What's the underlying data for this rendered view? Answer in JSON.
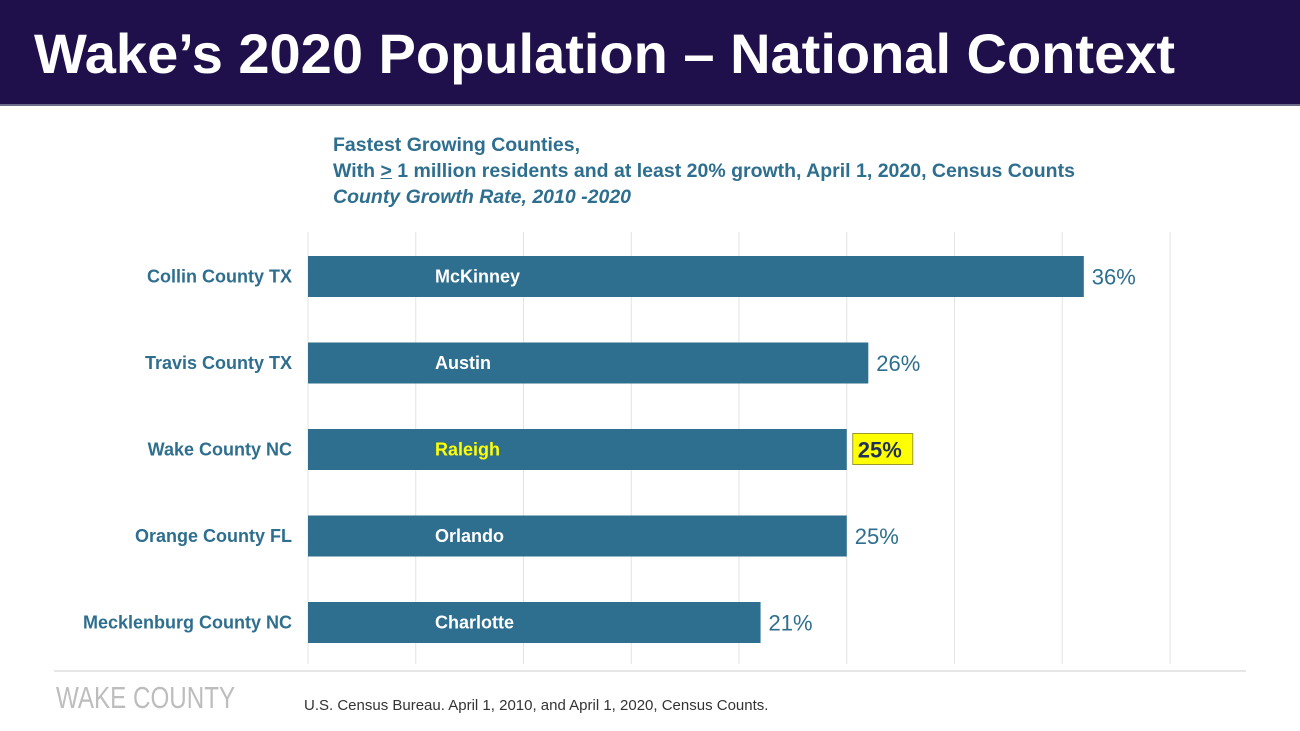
{
  "header": {
    "title": "Wake’s 2020 Population – National Context"
  },
  "chart_data": {
    "type": "bar",
    "orientation": "horizontal",
    "title": "Fastest Growing Counties,",
    "subtitle_prefix": "With ",
    "subtitle_symbol": ">",
    "subtitle_rest": " 1 million residents and at least 20% growth, April 1, 2020, Census Counts",
    "subtitle_italic": "County Growth Rate, 2010  -2020",
    "categories": [
      "Collin County TX",
      "Travis County TX",
      "Wake County NC",
      "Orange County FL",
      "Mecklenburg County NC"
    ],
    "cities": [
      "McKinney",
      "Austin",
      "Raleigh",
      "Orlando",
      "Charlotte"
    ],
    "values": [
      36,
      26,
      25,
      25,
      21
    ],
    "value_labels": [
      "36%",
      "26%",
      "25%",
      "25%",
      "21%"
    ],
    "highlight_index": 2,
    "xlim": [
      0,
      40
    ],
    "grid": true,
    "colors": {
      "bar": "#2e6e8e",
      "category_label": "#2e6e8e",
      "city_label": "#ffffff",
      "city_highlight": "#ffff00",
      "value_label": "#2e6e8e",
      "highlight_fill": "#ffff00",
      "highlight_text": "#1f2f5e",
      "gridline": "#e3e3e3"
    }
  },
  "footer": {
    "logo_text": "WAKE COUNTY",
    "source": "U.S. Census Bureau. April 1, 2010, and April 1, 2020, Census Counts."
  }
}
